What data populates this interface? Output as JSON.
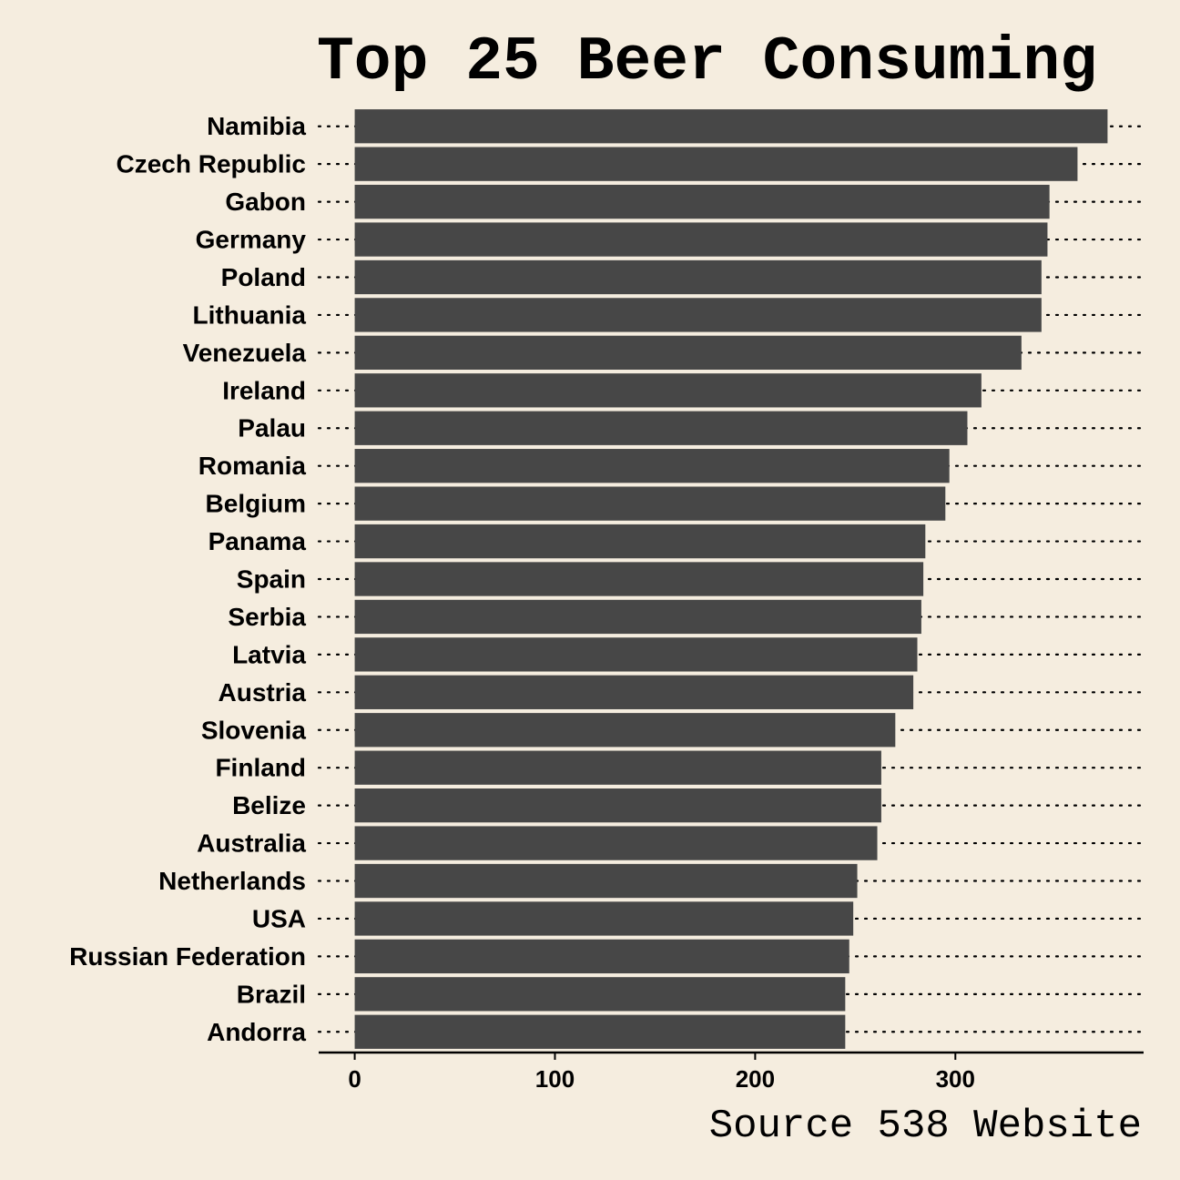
{
  "chart_data": {
    "type": "bar",
    "orientation": "horizontal",
    "title": "Top 25 Beer Consuming",
    "caption": "Source 538 Website",
    "categories": [
      "Namibia",
      "Czech Republic",
      "Gabon",
      "Germany",
      "Poland",
      "Lithuania",
      "Venezuela",
      "Ireland",
      "Palau",
      "Romania",
      "Belgium",
      "Panama",
      "Spain",
      "Serbia",
      "Latvia",
      "Austria",
      "Slovenia",
      "Finland",
      "Belize",
      "Australia",
      "Netherlands",
      "USA",
      "Russian Federation",
      "Brazil",
      "Andorra"
    ],
    "values": [
      376,
      361,
      347,
      346,
      343,
      343,
      333,
      313,
      306,
      297,
      295,
      285,
      284,
      283,
      281,
      279,
      270,
      263,
      263,
      261,
      251,
      249,
      247,
      245,
      245
    ],
    "xlim": [
      -18,
      394
    ],
    "xticks": [
      0,
      100,
      200,
      300
    ],
    "xlabel": "",
    "ylabel": "",
    "grid": "dotted horizontal lines",
    "colors": {
      "background": "#f5eddf",
      "bar": "#474747",
      "text": "#000000"
    }
  }
}
